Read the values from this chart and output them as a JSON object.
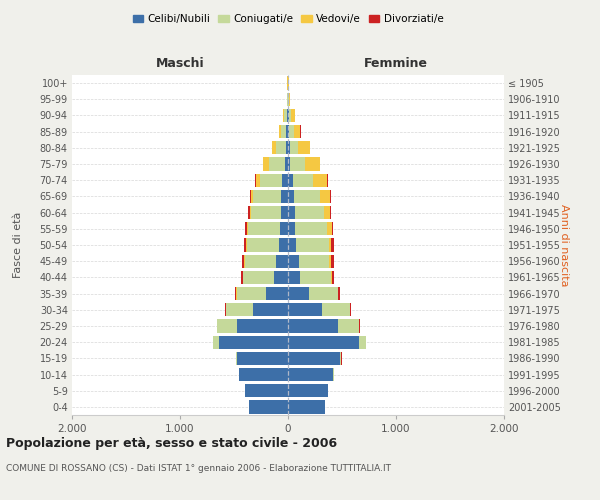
{
  "age_groups": [
    "0-4",
    "5-9",
    "10-14",
    "15-19",
    "20-24",
    "25-29",
    "30-34",
    "35-39",
    "40-44",
    "45-49",
    "50-54",
    "55-59",
    "60-64",
    "65-69",
    "70-74",
    "75-79",
    "80-84",
    "85-89",
    "90-94",
    "95-99",
    "100+"
  ],
  "birth_years": [
    "2001-2005",
    "1996-2000",
    "1991-1995",
    "1986-1990",
    "1981-1985",
    "1976-1980",
    "1971-1975",
    "1966-1970",
    "1961-1965",
    "1956-1960",
    "1951-1955",
    "1946-1950",
    "1941-1945",
    "1936-1940",
    "1931-1935",
    "1926-1930",
    "1921-1925",
    "1916-1920",
    "1911-1915",
    "1906-1910",
    "≤ 1905"
  ],
  "maschi": {
    "celibi": [
      360,
      395,
      450,
      470,
      640,
      470,
      320,
      200,
      130,
      110,
      85,
      72,
      65,
      65,
      60,
      30,
      18,
      15,
      8,
      3,
      2
    ],
    "coniugati": [
      2,
      2,
      5,
      15,
      55,
      185,
      255,
      275,
      285,
      290,
      295,
      295,
      275,
      255,
      200,
      150,
      90,
      50,
      25,
      5,
      2
    ],
    "vedovi": [
      0,
      0,
      0,
      0,
      1,
      1,
      1,
      2,
      3,
      5,
      8,
      10,
      15,
      20,
      40,
      50,
      40,
      20,
      10,
      3,
      1
    ],
    "divorziati": [
      0,
      0,
      0,
      1,
      2,
      5,
      8,
      10,
      15,
      20,
      20,
      18,
      12,
      8,
      5,
      3,
      3,
      2,
      0,
      0,
      0
    ]
  },
  "femmine": {
    "nubili": [
      340,
      370,
      420,
      480,
      660,
      465,
      315,
      190,
      115,
      98,
      78,
      68,
      62,
      58,
      46,
      22,
      15,
      12,
      10,
      4,
      2
    ],
    "coniugate": [
      2,
      2,
      5,
      15,
      60,
      190,
      255,
      270,
      280,
      285,
      298,
      295,
      268,
      238,
      188,
      132,
      80,
      42,
      22,
      5,
      2
    ],
    "vedove": [
      0,
      0,
      0,
      0,
      1,
      2,
      3,
      5,
      8,
      15,
      25,
      40,
      60,
      90,
      130,
      140,
      110,
      60,
      30,
      8,
      2
    ],
    "divorziate": [
      0,
      0,
      0,
      1,
      3,
      6,
      10,
      15,
      20,
      30,
      25,
      18,
      12,
      8,
      6,
      4,
      3,
      2,
      1,
      0,
      0
    ]
  },
  "colors": {
    "celibi": "#3d6fa8",
    "coniugati": "#c5d99a",
    "vedovi": "#f5c842",
    "divorziati": "#cc2222"
  },
  "xlim": 2000,
  "tick_labels": [
    "2.000",
    "1.000",
    "0",
    "1.000",
    "2.000"
  ],
  "tick_vals": [
    -2000,
    -1000,
    0,
    1000,
    2000
  ],
  "title": "Popolazione per età, sesso e stato civile - 2006",
  "subtitle": "COMUNE DI ROSSANO (CS) - Dati ISTAT 1° gennaio 2006 - Elaborazione TUTTITALIA.IT",
  "label_maschi": "Maschi",
  "label_femmine": "Femmine",
  "ylabel_left": "Fasce di età",
  "ylabel_right": "Anni di nascita",
  "legend_labels": [
    "Celibi/Nubili",
    "Coniugati/e",
    "Vedovi/e",
    "Divorziati/e"
  ],
  "bg_color": "#f0f0eb",
  "plot_bg": "#ffffff",
  "grid_color": "#d8d8d8"
}
